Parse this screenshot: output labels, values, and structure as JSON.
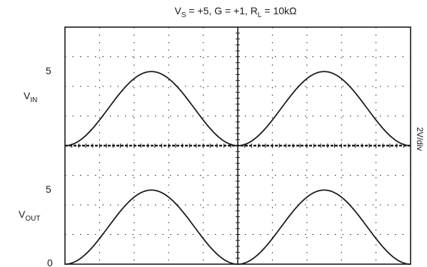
{
  "chart_data": {
    "type": "line",
    "title": {
      "parts": [
        {
          "text": "V",
          "sub": false
        },
        {
          "text": "S",
          "sub": true
        },
        {
          "text": " = +5, G = +1, R",
          "sub": false
        },
        {
          "text": "L",
          "sub": true
        },
        {
          "text": " = 10kΩ",
          "sub": false
        }
      ]
    },
    "side_label": "2V/div",
    "grid": true,
    "channels": [
      {
        "id": "vin",
        "label_main": "V",
        "label_sub": "IN",
        "tick_label": "5",
        "ground_marker": "",
        "color": "#1a1a1a"
      },
      {
        "id": "vout",
        "label_main": "V",
        "label_sub": "OUT",
        "tick_label": "5",
        "ground_marker": "0",
        "color": "#1a1a1a"
      }
    ],
    "series": [
      {
        "channel": "vin",
        "waveform": "raised-cosine",
        "min_div": 0,
        "max_div": 2.5,
        "cycles": 2
      },
      {
        "channel": "vout",
        "waveform": "raised-cosine",
        "min_div": 0,
        "max_div": 2.5,
        "cycles": 2
      }
    ],
    "x_divisions": 10,
    "y_divisions": 8
  }
}
